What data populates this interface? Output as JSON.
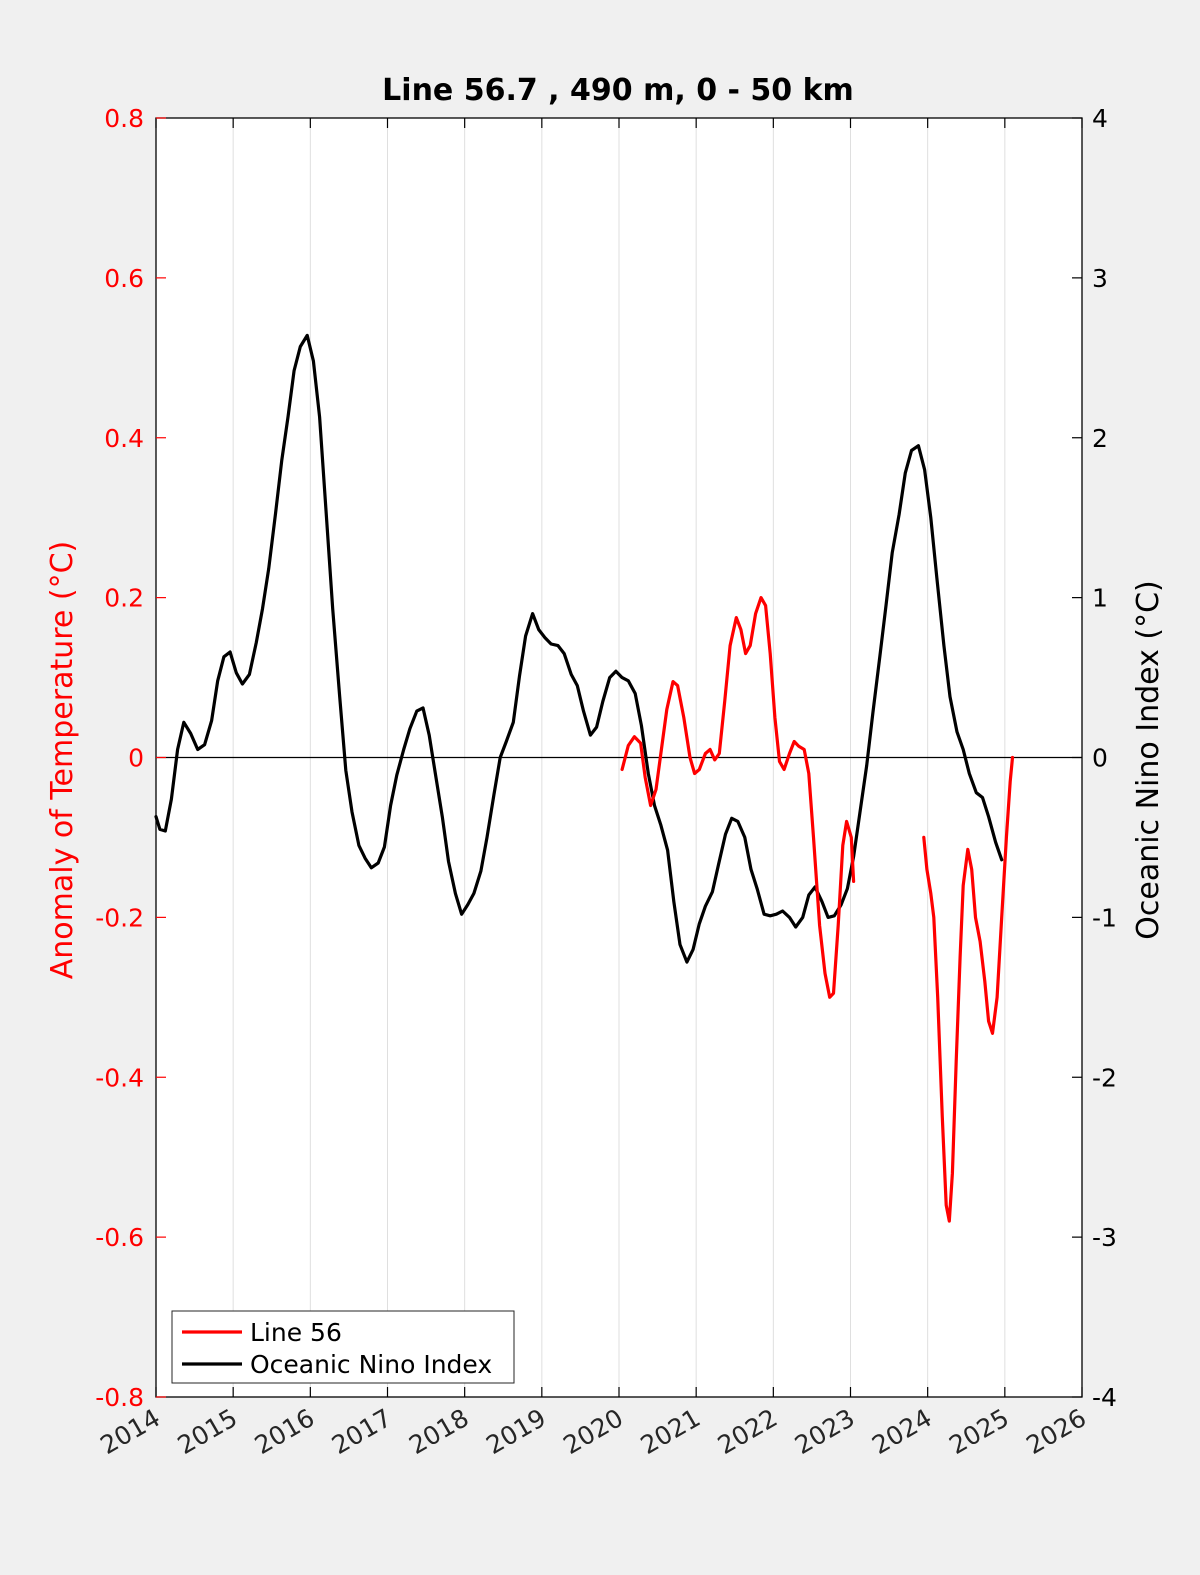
{
  "chart_data": {
    "type": "line",
    "title": "Line 56.7 , 490 m, 0 - 50 km",
    "xlabel": "",
    "ylabel_left": "Anomaly of Temperature (°C)",
    "ylabel_right": "Oceanic Nino Index (°C)",
    "xlim": [
      2014,
      2026
    ],
    "ylim_left": [
      -0.8,
      0.8
    ],
    "ylim_right": [
      -4,
      4
    ],
    "x_ticks": [
      "2014",
      "2015",
      "2016",
      "2017",
      "2018",
      "2019",
      "2020",
      "2021",
      "2022",
      "2023",
      "2024",
      "2025",
      "2026"
    ],
    "y_ticks_left": [
      "-0.8",
      "-0.6",
      "-0.4",
      "-0.2",
      "0",
      "0.2",
      "0.4",
      "0.6",
      "0.8"
    ],
    "y_ticks_right": [
      "-4",
      "-3",
      "-2",
      "-1",
      "0",
      "1",
      "2",
      "3",
      "4"
    ],
    "grid": "vertical",
    "zero_line": true,
    "legend_position": "bottom-left",
    "colors": {
      "left_axis": "#ff0000",
      "right_axis": "#000000",
      "background": "#f0f0f0",
      "plot_bg": "#ffffff"
    },
    "series": [
      {
        "name": "Line 56",
        "axis": "left",
        "color": "#ff0000",
        "segments": [
          [
            [
              2020.04,
              -0.015
            ],
            [
              2020.12,
              0.015
            ],
            [
              2020.2,
              0.026
            ],
            [
              2020.28,
              0.018
            ],
            [
              2020.34,
              -0.025
            ],
            [
              2020.41,
              -0.06
            ],
            [
              2020.48,
              -0.04
            ],
            [
              2020.55,
              0.01
            ],
            [
              2020.62,
              0.06
            ],
            [
              2020.7,
              0.095
            ],
            [
              2020.76,
              0.09
            ],
            [
              2020.84,
              0.05
            ],
            [
              2020.92,
              0.0
            ],
            [
              2020.98,
              -0.02
            ],
            [
              2021.04,
              -0.015
            ],
            [
              2021.12,
              0.005
            ],
            [
              2021.18,
              0.01
            ],
            [
              2021.24,
              -0.003
            ],
            [
              2021.3,
              0.005
            ],
            [
              2021.37,
              0.07
            ],
            [
              2021.44,
              0.14
            ],
            [
              2021.52,
              0.175
            ],
            [
              2021.58,
              0.16
            ],
            [
              2021.64,
              0.13
            ],
            [
              2021.7,
              0.14
            ],
            [
              2021.77,
              0.18
            ],
            [
              2021.84,
              0.2
            ],
            [
              2021.9,
              0.19
            ],
            [
              2021.96,
              0.13
            ],
            [
              2022.02,
              0.05
            ],
            [
              2022.08,
              -0.005
            ],
            [
              2022.14,
              -0.015
            ],
            [
              2022.21,
              0.005
            ],
            [
              2022.27,
              0.02
            ],
            [
              2022.33,
              0.014
            ],
            [
              2022.4,
              0.01
            ],
            [
              2022.46,
              -0.02
            ],
            [
              2022.52,
              -0.1
            ],
            [
              2022.6,
              -0.21
            ],
            [
              2022.67,
              -0.27
            ],
            [
              2022.73,
              -0.3
            ],
            [
              2022.78,
              -0.295
            ],
            [
              2022.84,
              -0.21
            ],
            [
              2022.9,
              -0.11
            ],
            [
              2022.95,
              -0.08
            ],
            [
              2023.01,
              -0.1
            ],
            [
              2023.04,
              -0.155
            ]
          ],
          [
            [
              2023.95,
              -0.1
            ],
            [
              2023.99,
              -0.14
            ],
            [
              2024.04,
              -0.17
            ],
            [
              2024.08,
              -0.2
            ],
            [
              2024.13,
              -0.3
            ],
            [
              2024.19,
              -0.45
            ],
            [
              2024.24,
              -0.56
            ],
            [
              2024.28,
              -0.58
            ],
            [
              2024.32,
              -0.52
            ],
            [
              2024.37,
              -0.38
            ],
            [
              2024.42,
              -0.25
            ],
            [
              2024.46,
              -0.16
            ],
            [
              2024.52,
              -0.115
            ],
            [
              2024.57,
              -0.14
            ],
            [
              2024.62,
              -0.2
            ],
            [
              2024.68,
              -0.23
            ],
            [
              2024.74,
              -0.28
            ],
            [
              2024.79,
              -0.33
            ],
            [
              2024.84,
              -0.345
            ],
            [
              2024.9,
              -0.3
            ],
            [
              2024.96,
              -0.2
            ],
            [
              2025.02,
              -0.1
            ],
            [
              2025.07,
              -0.03
            ],
            [
              2025.1,
              0.0
            ]
          ]
        ]
      },
      {
        "name": "Oceanic Nino Index",
        "axis": "right",
        "color": "#000000",
        "segments": [
          [
            [
              2014.0,
              -0.37
            ],
            [
              2014.05,
              -0.45
            ],
            [
              2014.12,
              -0.46
            ],
            [
              2014.2,
              -0.26
            ],
            [
              2014.28,
              0.05
            ],
            [
              2014.36,
              0.22
            ],
            [
              2014.45,
              0.15
            ],
            [
              2014.54,
              0.05
            ],
            [
              2014.63,
              0.08
            ],
            [
              2014.72,
              0.23
            ],
            [
              2014.8,
              0.48
            ],
            [
              2014.88,
              0.63
            ],
            [
              2014.96,
              0.66
            ],
            [
              2015.04,
              0.53
            ],
            [
              2015.12,
              0.46
            ],
            [
              2015.21,
              0.52
            ],
            [
              2015.3,
              0.72
            ],
            [
              2015.38,
              0.93
            ],
            [
              2015.46,
              1.18
            ],
            [
              2015.55,
              1.53
            ],
            [
              2015.63,
              1.86
            ],
            [
              2015.71,
              2.13
            ],
            [
              2015.79,
              2.42
            ],
            [
              2015.87,
              2.57
            ],
            [
              2015.96,
              2.64
            ],
            [
              2016.04,
              2.48
            ],
            [
              2016.12,
              2.13
            ],
            [
              2016.21,
              1.5
            ],
            [
              2016.29,
              0.93
            ],
            [
              2016.38,
              0.38
            ],
            [
              2016.46,
              -0.08
            ],
            [
              2016.54,
              -0.34
            ],
            [
              2016.63,
              -0.55
            ],
            [
              2016.71,
              -0.63
            ],
            [
              2016.79,
              -0.69
            ],
            [
              2016.88,
              -0.66
            ],
            [
              2016.96,
              -0.56
            ],
            [
              2017.04,
              -0.3
            ],
            [
              2017.12,
              -0.11
            ],
            [
              2017.21,
              0.05
            ],
            [
              2017.29,
              0.18
            ],
            [
              2017.38,
              0.29
            ],
            [
              2017.46,
              0.31
            ],
            [
              2017.54,
              0.14
            ],
            [
              2017.63,
              -0.13
            ],
            [
              2017.71,
              -0.37
            ],
            [
              2017.79,
              -0.65
            ],
            [
              2017.88,
              -0.85
            ],
            [
              2017.96,
              -0.98
            ],
            [
              2018.04,
              -0.92
            ],
            [
              2018.12,
              -0.85
            ],
            [
              2018.21,
              -0.71
            ],
            [
              2018.29,
              -0.5
            ],
            [
              2018.38,
              -0.23
            ],
            [
              2018.46,
              0.0
            ],
            [
              2018.54,
              0.1
            ],
            [
              2018.63,
              0.22
            ],
            [
              2018.71,
              0.51
            ],
            [
              2018.79,
              0.76
            ],
            [
              2018.88,
              0.9
            ],
            [
              2018.96,
              0.8
            ],
            [
              2019.04,
              0.75
            ],
            [
              2019.12,
              0.71
            ],
            [
              2019.21,
              0.7
            ],
            [
              2019.29,
              0.65
            ],
            [
              2019.38,
              0.52
            ],
            [
              2019.46,
              0.45
            ],
            [
              2019.54,
              0.29
            ],
            [
              2019.63,
              0.14
            ],
            [
              2019.71,
              0.19
            ],
            [
              2019.79,
              0.35
            ],
            [
              2019.88,
              0.5
            ],
            [
              2019.96,
              0.54
            ],
            [
              2020.04,
              0.5
            ],
            [
              2020.12,
              0.48
            ],
            [
              2020.21,
              0.4
            ],
            [
              2020.29,
              0.2
            ],
            [
              2020.38,
              -0.1
            ],
            [
              2020.46,
              -0.3
            ],
            [
              2020.54,
              -0.42
            ],
            [
              2020.63,
              -0.58
            ],
            [
              2020.71,
              -0.9
            ],
            [
              2020.79,
              -1.17
            ],
            [
              2020.88,
              -1.28
            ],
            [
              2020.96,
              -1.2
            ],
            [
              2021.04,
              -1.04
            ],
            [
              2021.12,
              -0.93
            ],
            [
              2021.21,
              -0.84
            ],
            [
              2021.29,
              -0.67
            ],
            [
              2021.38,
              -0.48
            ],
            [
              2021.46,
              -0.38
            ],
            [
              2021.54,
              -0.4
            ],
            [
              2021.63,
              -0.5
            ],
            [
              2021.71,
              -0.7
            ],
            [
              2021.79,
              -0.82
            ],
            [
              2021.88,
              -0.98
            ],
            [
              2021.96,
              -0.99
            ],
            [
              2022.04,
              -0.98
            ],
            [
              2022.12,
              -0.96
            ],
            [
              2022.21,
              -1.0
            ],
            [
              2022.29,
              -1.06
            ],
            [
              2022.38,
              -1.0
            ],
            [
              2022.46,
              -0.86
            ],
            [
              2022.54,
              -0.81
            ],
            [
              2022.63,
              -0.9
            ],
            [
              2022.71,
              -1.0
            ],
            [
              2022.79,
              -0.99
            ],
            [
              2022.88,
              -0.92
            ],
            [
              2022.96,
              -0.82
            ],
            [
              2023.04,
              -0.62
            ],
            [
              2023.12,
              -0.35
            ],
            [
              2023.21,
              -0.05
            ],
            [
              2023.29,
              0.28
            ],
            [
              2023.38,
              0.63
            ],
            [
              2023.46,
              0.95
            ],
            [
              2023.54,
              1.28
            ],
            [
              2023.63,
              1.52
            ],
            [
              2023.71,
              1.78
            ],
            [
              2023.79,
              1.92
            ],
            [
              2023.88,
              1.95
            ],
            [
              2023.96,
              1.8
            ],
            [
              2024.04,
              1.5
            ],
            [
              2024.12,
              1.12
            ],
            [
              2024.21,
              0.7
            ],
            [
              2024.29,
              0.38
            ],
            [
              2024.38,
              0.16
            ],
            [
              2024.46,
              0.05
            ],
            [
              2024.54,
              -0.1
            ],
            [
              2024.63,
              -0.22
            ],
            [
              2024.71,
              -0.25
            ],
            [
              2024.79,
              -0.37
            ],
            [
              2024.88,
              -0.53
            ],
            [
              2024.96,
              -0.64
            ]
          ]
        ]
      }
    ]
  }
}
